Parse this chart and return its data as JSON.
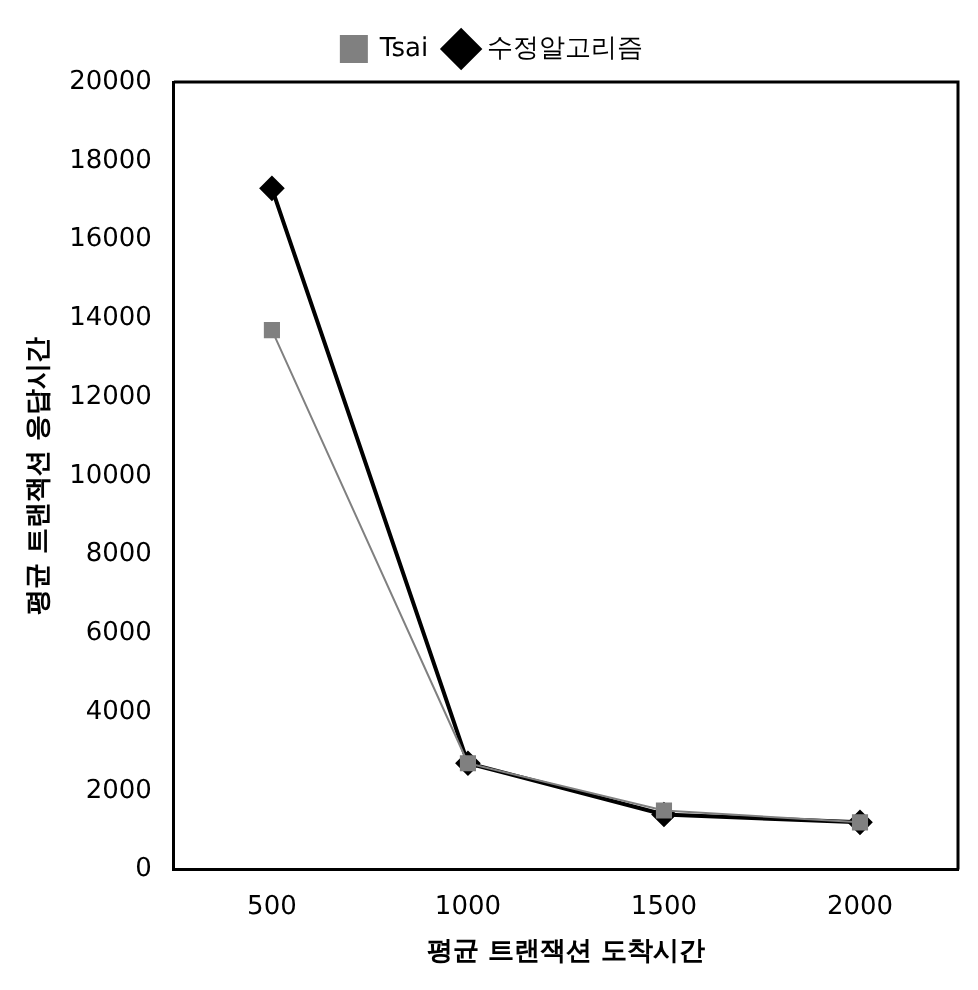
{
  "chart_data": {
    "type": "line",
    "xlabel": "평균 트랜잭션 도착시간",
    "ylabel": "평균 트랜잭션 응답시간",
    "categories": [
      "500",
      "1000",
      "1500",
      "2000"
    ],
    "series": [
      {
        "name": "수정알고리즘",
        "color": "#000000",
        "marker": "diamond",
        "values": [
          17300,
          2700,
          1400,
          1200
        ]
      },
      {
        "name": "Tsai",
        "color": "#808080",
        "marker": "square",
        "values": [
          13700,
          2700,
          1500,
          1200
        ]
      }
    ],
    "ylim": [
      0,
      20000
    ],
    "yticks": [
      0,
      2000,
      4000,
      6000,
      8000,
      10000,
      12000,
      14000,
      16000,
      18000,
      20000
    ],
    "grid": false,
    "legend": "top"
  }
}
